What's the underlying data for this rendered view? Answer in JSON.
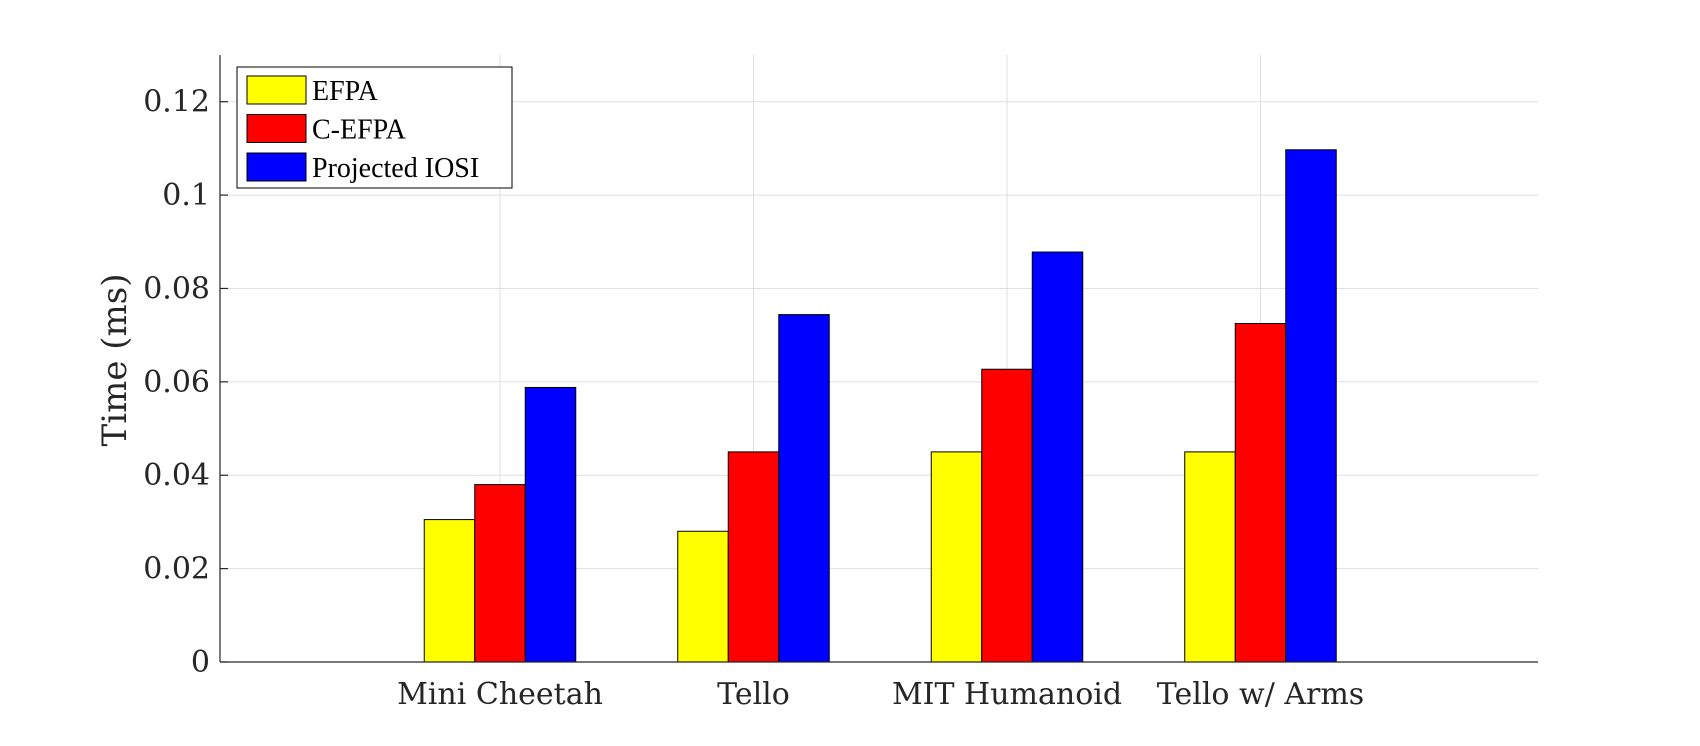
{
  "chart_data": {
    "type": "bar",
    "categories": [
      "Mini Cheetah",
      "Tello",
      "MIT Humanoid",
      "Tello w/ Arms"
    ],
    "series": [
      {
        "name": "EFPA",
        "color": "#ffff00",
        "values": [
          0.0305,
          0.028,
          0.045,
          0.045
        ]
      },
      {
        "name": "C-EFPA",
        "color": "#ff0000",
        "values": [
          0.038,
          0.045,
          0.0627,
          0.0725
        ]
      },
      {
        "name": "Projected IOSI",
        "color": "#0000ff",
        "values": [
          0.0588,
          0.0744,
          0.0878,
          0.1097
        ]
      }
    ],
    "title": "",
    "xlabel": "",
    "ylabel": "Time (ms)",
    "ylim": [
      0,
      0.13
    ],
    "yticks": [
      {
        "value": 0,
        "label": "0"
      },
      {
        "value": 0.02,
        "label": "0.02"
      },
      {
        "value": 0.04,
        "label": "0.04"
      },
      {
        "value": 0.06,
        "label": "0.06"
      },
      {
        "value": 0.08,
        "label": "0.08"
      },
      {
        "value": 0.1,
        "label": "0.1"
      },
      {
        "value": 0.12,
        "label": "0.12"
      }
    ],
    "grid": true,
    "legend_position": "top-left"
  }
}
